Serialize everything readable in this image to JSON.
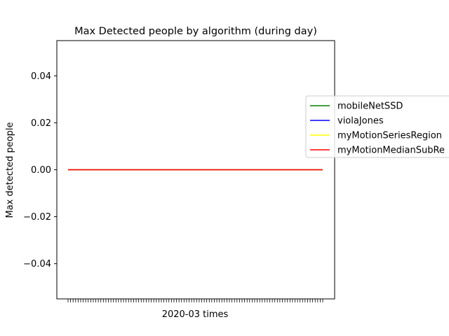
{
  "chart_data": {
    "type": "line",
    "title": "Max Detected people by algorithm (during day)",
    "xlabel": "2020-03 times",
    "ylabel": "Max detected people",
    "ylim": [
      -0.055,
      0.055
    ],
    "yticks": [
      -0.04,
      -0.02,
      0.0,
      0.02,
      0.04
    ],
    "ytick_labels": [
      "−0.04",
      "−0.02",
      "0.00",
      "0.02",
      "0.04"
    ],
    "x_tick_count": 102,
    "x_tick_labels_visible": false,
    "grid": false,
    "legend_position": "right (partially outside plot, clipped)",
    "series": [
      {
        "name": "mobileNetSSD",
        "color": "#008000",
        "value": 0
      },
      {
        "name": "violaJones",
        "color": "#0000ff",
        "value": 0
      },
      {
        "name": "myMotionSeriesRegion",
        "color": "#ffff00",
        "value": 0
      },
      {
        "name": "myMotionMedianSubRe",
        "color": "#ff0000",
        "value": 0
      }
    ]
  }
}
